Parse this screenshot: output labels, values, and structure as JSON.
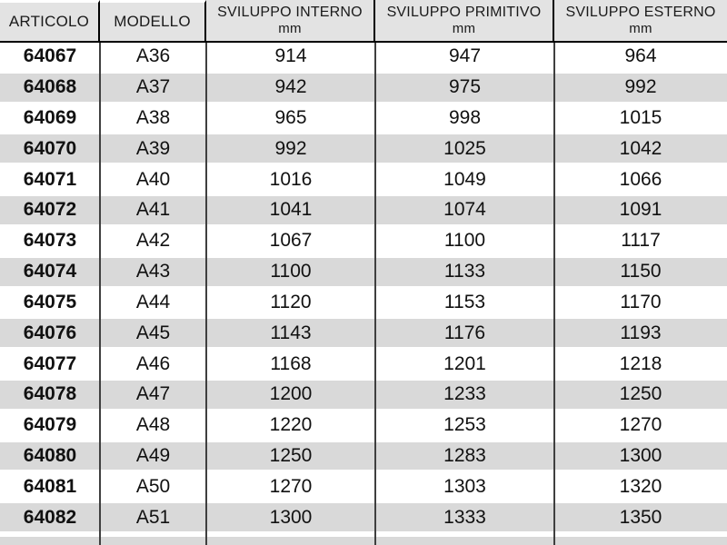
{
  "table": {
    "columns": [
      {
        "key": "articolo",
        "label": "ARTICOLO",
        "unit": ""
      },
      {
        "key": "modello",
        "label": "MODELLO",
        "unit": ""
      },
      {
        "key": "sviluppo_interno",
        "label": "SVILUPPO INTERNO",
        "unit": "mm"
      },
      {
        "key": "sviluppo_primitivo",
        "label": "SVILUPPO PRIMITIVO",
        "unit": "mm"
      },
      {
        "key": "sviluppo_esterno",
        "label": "SVILUPPO ESTERNO",
        "unit": "mm"
      }
    ],
    "rows": [
      [
        "64067",
        "A36",
        "914",
        "947",
        "964"
      ],
      [
        "64068",
        "A37",
        "942",
        "975",
        "992"
      ],
      [
        "64069",
        "A38",
        "965",
        "998",
        "1015"
      ],
      [
        "64070",
        "A39",
        "992",
        "1025",
        "1042"
      ],
      [
        "64071",
        "A40",
        "1016",
        "1049",
        "1066"
      ],
      [
        "64072",
        "A41",
        "1041",
        "1074",
        "1091"
      ],
      [
        "64073",
        "A42",
        "1067",
        "1100",
        "1117"
      ],
      [
        "64074",
        "A43",
        "1100",
        "1133",
        "1150"
      ],
      [
        "64075",
        "A44",
        "1120",
        "1153",
        "1170"
      ],
      [
        "64076",
        "A45",
        "1143",
        "1176",
        "1193"
      ],
      [
        "64077",
        "A46",
        "1168",
        "1201",
        "1218"
      ],
      [
        "64078",
        "A47",
        "1200",
        "1233",
        "1250"
      ],
      [
        "64079",
        "A48",
        "1220",
        "1253",
        "1270"
      ],
      [
        "64080",
        "A49",
        "1250",
        "1283",
        "1300"
      ],
      [
        "64081",
        "A50",
        "1270",
        "1303",
        "1320"
      ],
      [
        "64082",
        "A51",
        "1300",
        "1333",
        "1350"
      ]
    ]
  },
  "colors": {
    "header_bg": "#e3e3e3",
    "row_bg": "#ffffff",
    "row_alt_bg": "#d9d9d9",
    "header_border": "#000000",
    "grid_line": "#3f3f3f",
    "text": "#141414"
  }
}
